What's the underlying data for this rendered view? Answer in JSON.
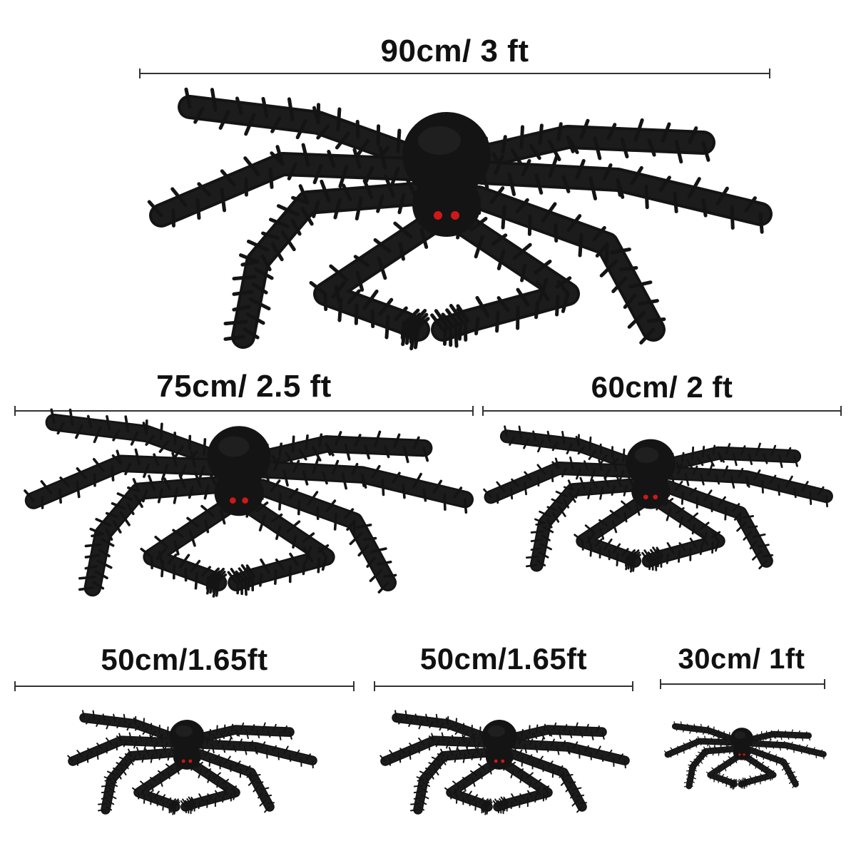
{
  "sizes": [
    {
      "label": "90cm/ 3 ft"
    },
    {
      "label": "75cm/ 2.5 ft"
    },
    {
      "label": "60cm/ 2 ft"
    },
    {
      "label": "50cm/1.65ft"
    },
    {
      "label": "50cm/1.65ft"
    },
    {
      "label": "30cm/ 1ft"
    }
  ],
  "colors": {
    "fur": "#141414",
    "fur_highlight": "#2a2a2a",
    "eyes": "#d01818",
    "rule": "#333333",
    "text": "#111111"
  }
}
